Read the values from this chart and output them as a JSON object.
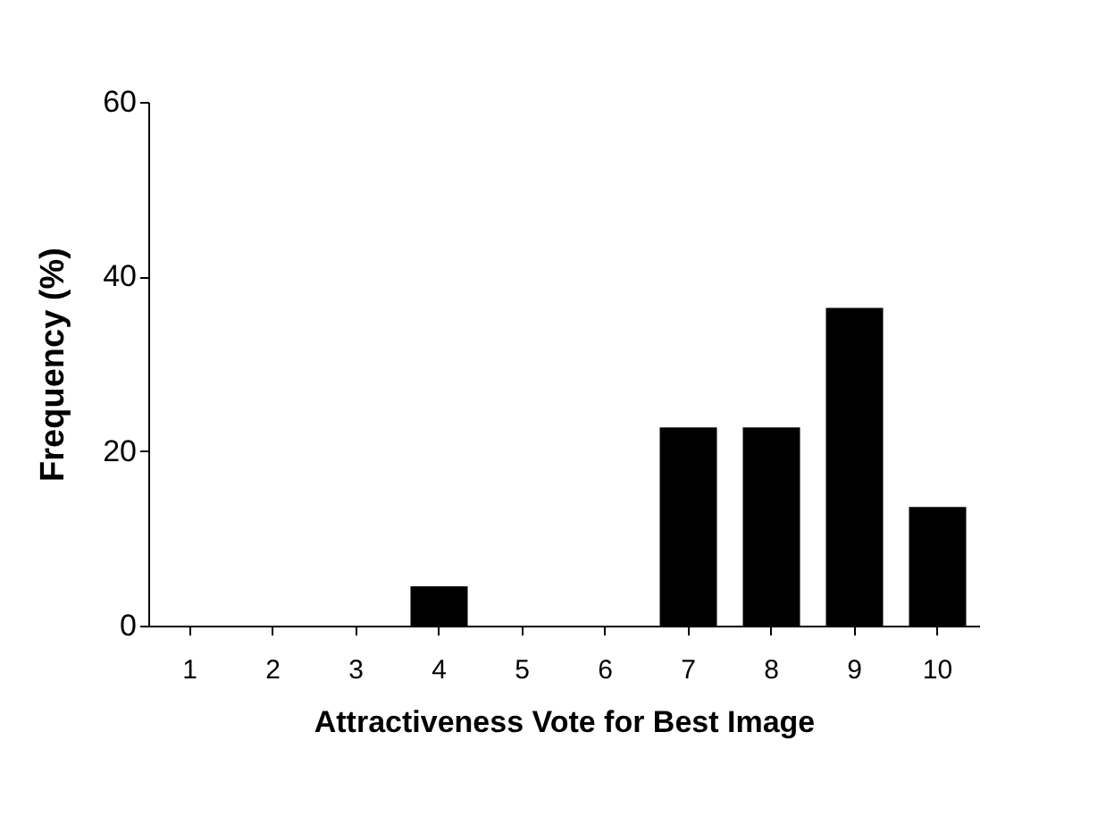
{
  "chart_data": {
    "type": "bar",
    "xlabel": "Attractiveness Vote for Best Image",
    "ylabel": "Frequency (%)",
    "categories": [
      "1",
      "2",
      "3",
      "4",
      "5",
      "6",
      "7",
      "8",
      "9",
      "10"
    ],
    "values": [
      0,
      0,
      0,
      4.5,
      0,
      0,
      22.7,
      22.7,
      36.4,
      13.6
    ],
    "color": "#000000",
    "ylim": [
      0,
      60
    ],
    "yticks": [
      0,
      20,
      40,
      60
    ],
    "grid": false
  }
}
